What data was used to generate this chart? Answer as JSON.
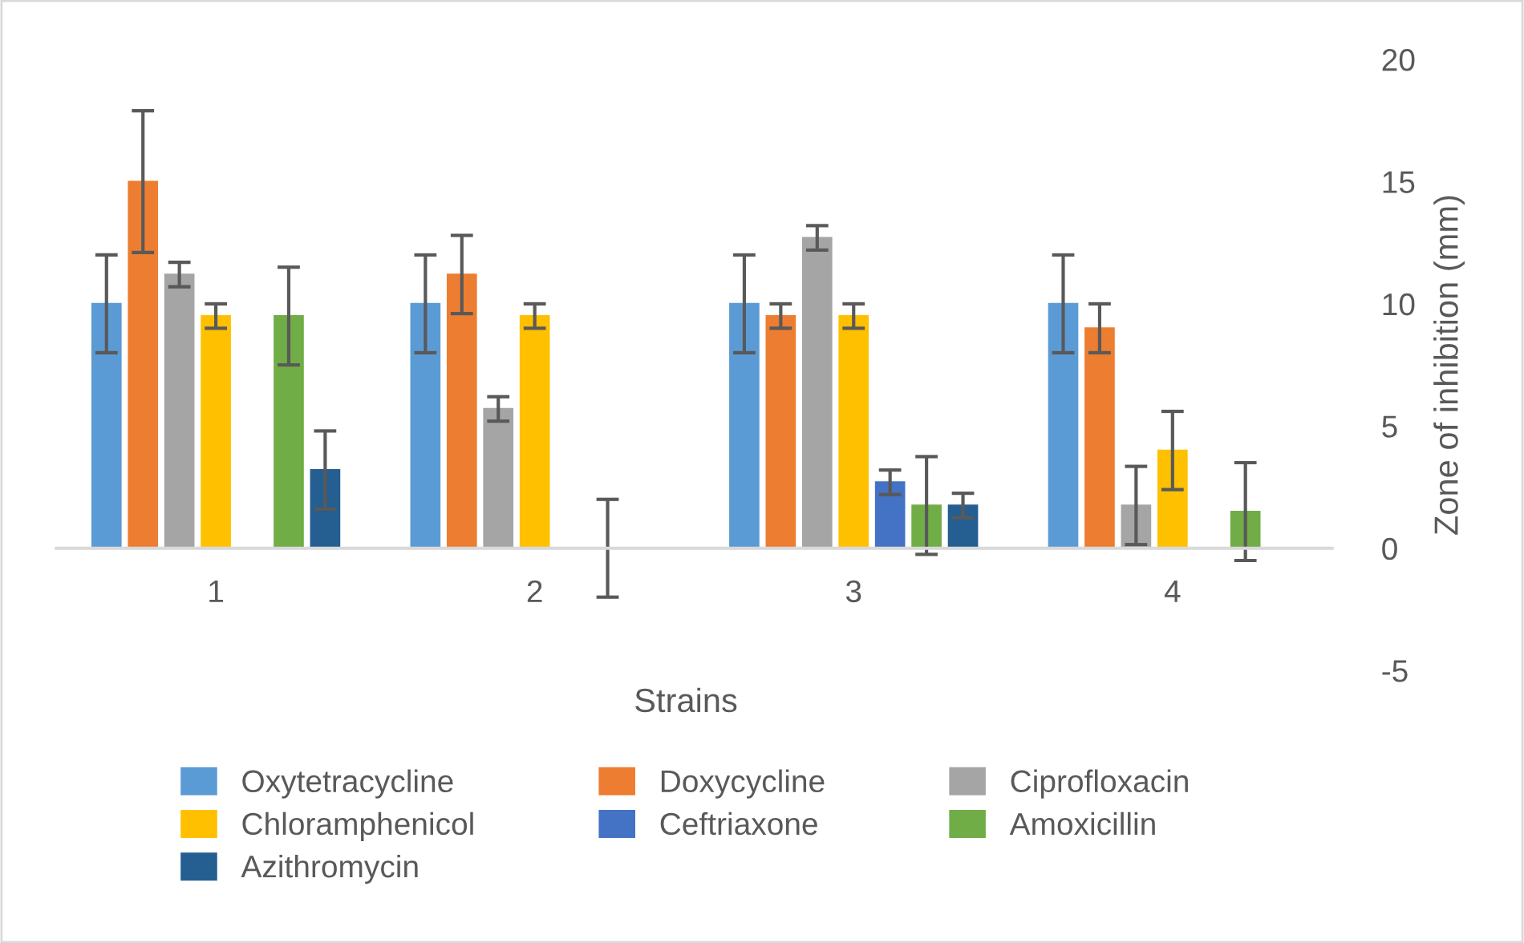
{
  "chart_data": {
    "type": "bar",
    "xlabel": "Strains",
    "ylabel": "Zone of inhibition (mm)",
    "categories": [
      "1",
      "2",
      "3",
      "4"
    ],
    "series": [
      {
        "name": "Oxytetracycline",
        "color": "#5b9bd5",
        "values": [
          10,
          10,
          10,
          10
        ],
        "errors": [
          2,
          2,
          2,
          2
        ]
      },
      {
        "name": "Doxycycline",
        "color": "#ed7d31",
        "values": [
          15,
          11.2,
          9.5,
          9
        ],
        "errors": [
          2.9,
          1.6,
          0.5,
          1
        ]
      },
      {
        "name": "Ciprofloxacin",
        "color": "#a5a5a5",
        "values": [
          11.2,
          5.7,
          12.7,
          1.75
        ],
        "errors": [
          0.5,
          0.5,
          0.5,
          1.6
        ]
      },
      {
        "name": "Chloramphenicol",
        "color": "#ffc000",
        "values": [
          9.5,
          9.5,
          9.5,
          4
        ],
        "errors": [
          0.5,
          0.5,
          0.5,
          1.6
        ]
      },
      {
        "name": "Ceftriaxone",
        "color": "#4472c4",
        "values": [
          0,
          0,
          2.7,
          0
        ],
        "errors": [
          null,
          null,
          0.5,
          null
        ]
      },
      {
        "name": "Amoxicillin",
        "color": "#70ad47",
        "values": [
          9.5,
          0,
          1.75,
          1.5
        ],
        "errors": [
          2,
          2,
          2,
          2
        ]
      },
      {
        "name": "Azithromycin",
        "color": "#255e91",
        "values": [
          3.2,
          0,
          1.75,
          0
        ],
        "errors": [
          1.6,
          null,
          0.5,
          null
        ]
      }
    ],
    "ylim": [
      -5,
      20
    ],
    "yticks": [
      -5,
      0,
      5,
      10,
      15,
      20
    ],
    "grid": false,
    "legend": "bottom"
  }
}
